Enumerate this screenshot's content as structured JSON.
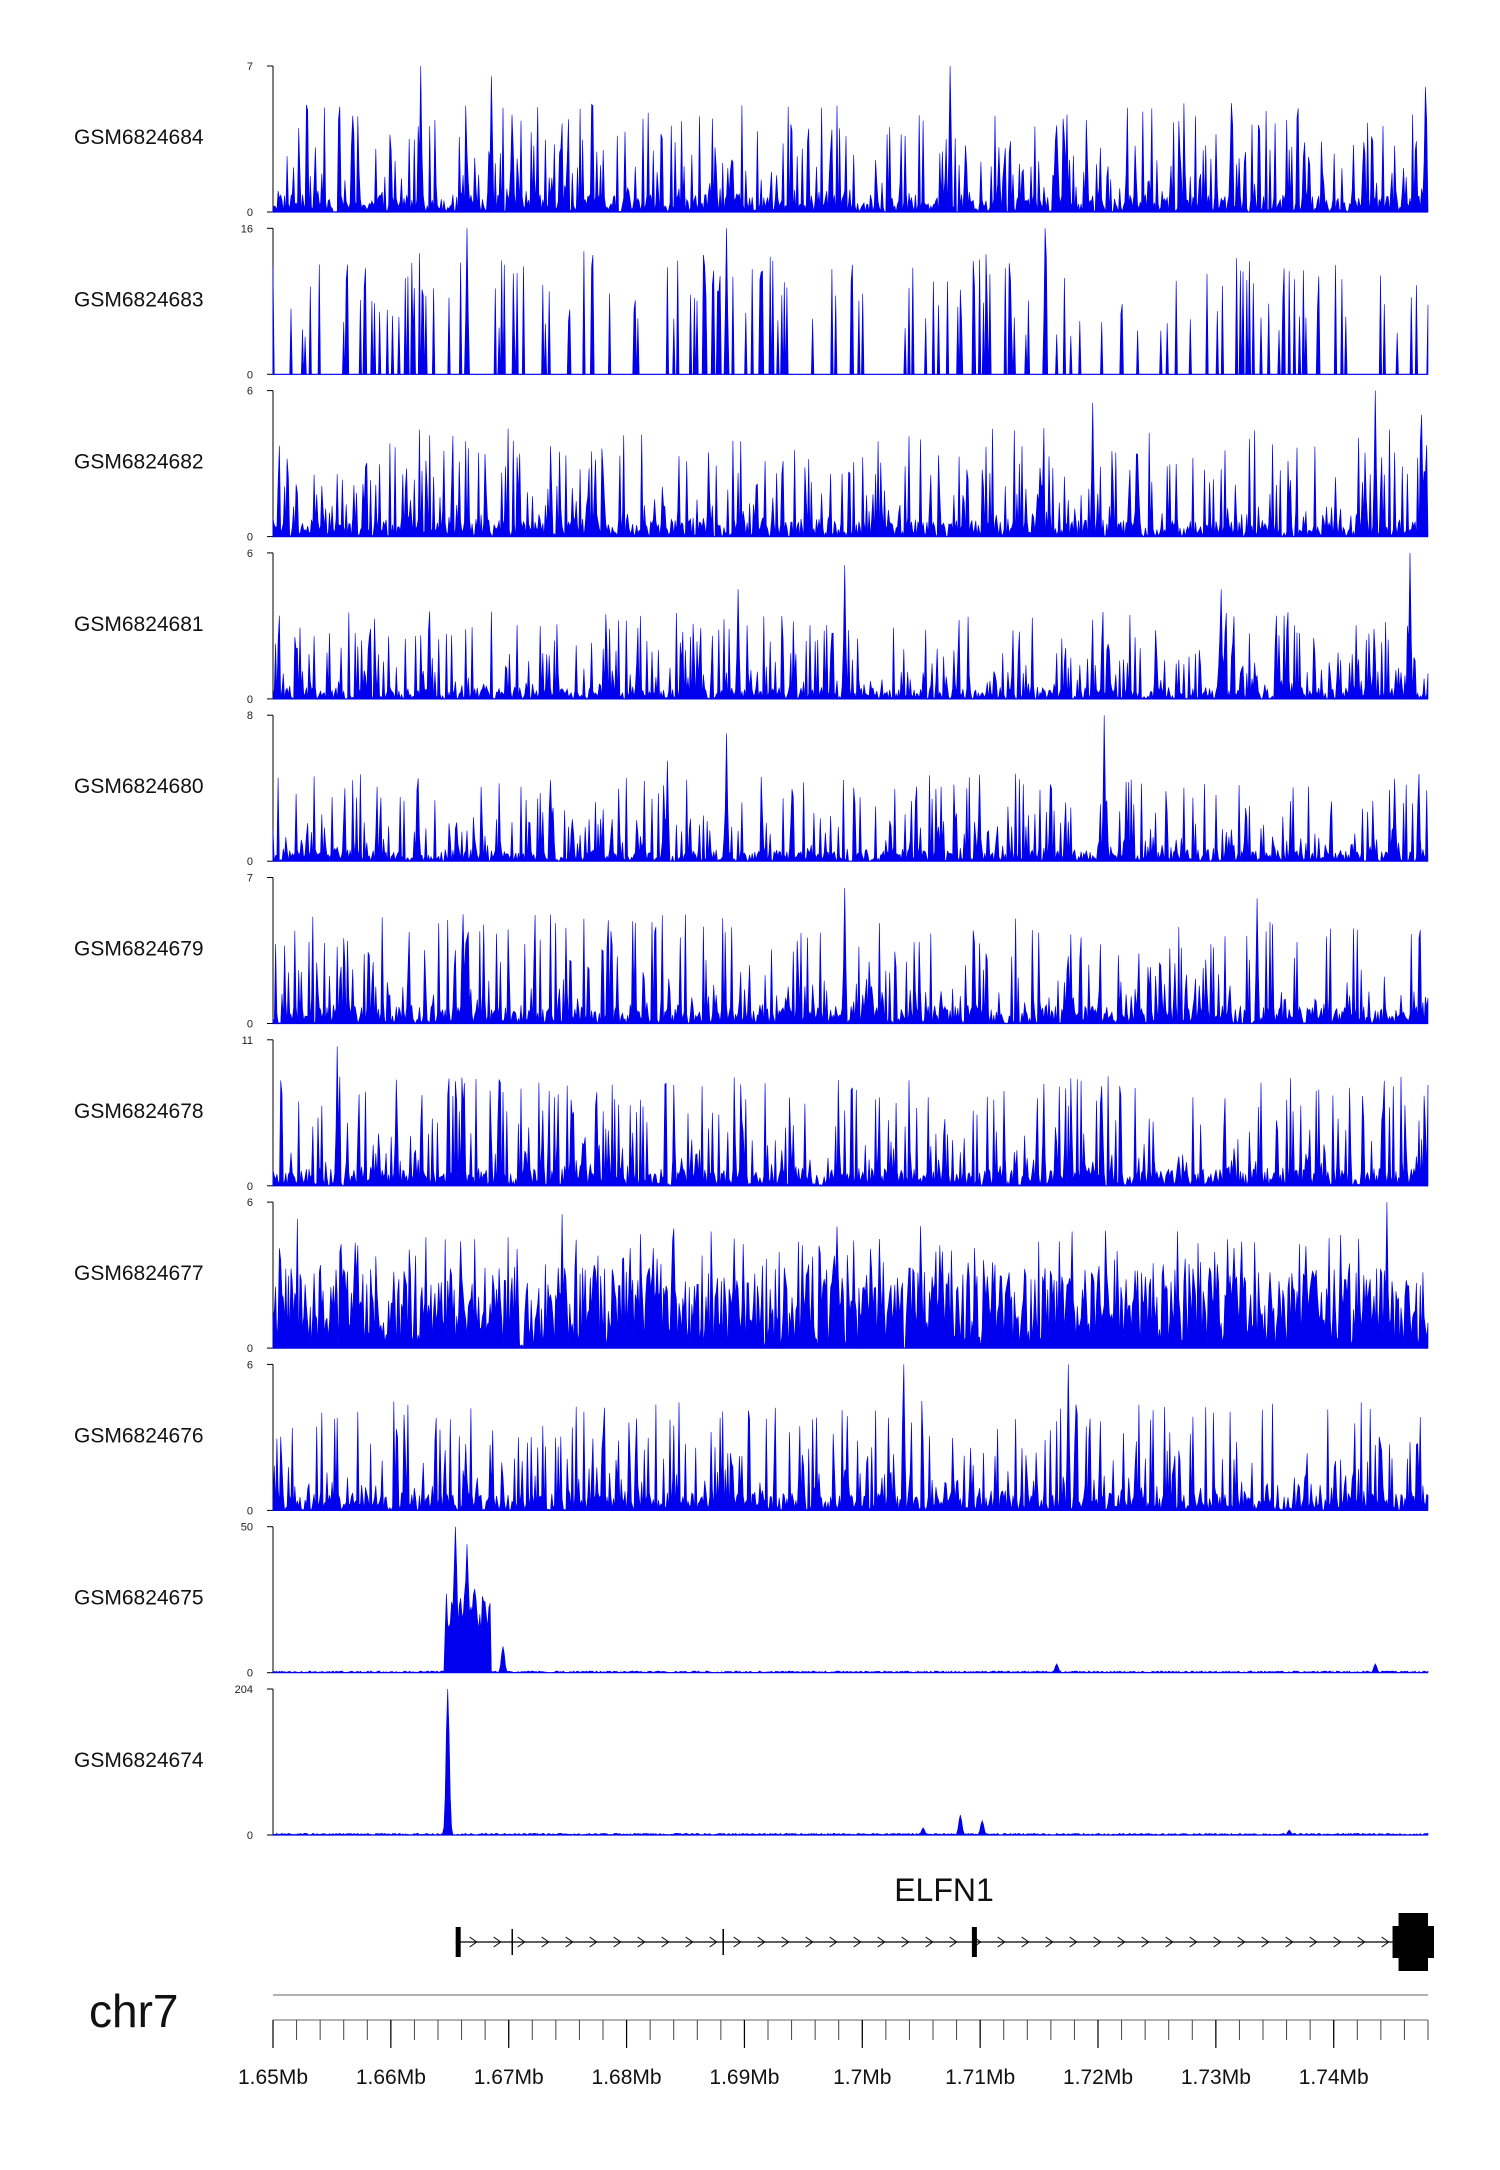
{
  "chart_data": {
    "type": "area",
    "chromosome": "chr7",
    "xlim": [
      1.65,
      1.748
    ],
    "x_unit": "Mb",
    "tick_labels": [
      "1.65Mb",
      "1.66Mb",
      "1.67Mb",
      "1.68Mb",
      "1.69Mb",
      "1.7Mb",
      "1.71Mb",
      "1.72Mb",
      "1.73Mb",
      "1.74Mb"
    ],
    "tick_values": [
      1.65,
      1.66,
      1.67,
      1.68,
      1.69,
      1.7,
      1.71,
      1.72,
      1.73,
      1.74
    ],
    "color": "#0000ee",
    "tracks": [
      {
        "name": "GSM6824684",
        "ymax": 7,
        "ymin": 0,
        "pattern": "noise",
        "peaks": [
          [
            1.6625,
            7
          ],
          [
            1.6685,
            6.5
          ],
          [
            1.7075,
            7
          ],
          [
            1.7478,
            6
          ]
        ]
      },
      {
        "name": "GSM6824683",
        "ymax": 16,
        "ymin": 0,
        "pattern": "sparse",
        "peaks": [
          [
            1.6665,
            16
          ],
          [
            1.7155,
            16
          ],
          [
            1.6885,
            16
          ]
        ]
      },
      {
        "name": "GSM6824682",
        "ymax": 6,
        "ymin": 0,
        "pattern": "noise",
        "peaks": [
          [
            1.7195,
            5.5
          ],
          [
            1.7435,
            6
          ],
          [
            1.7475,
            5
          ]
        ]
      },
      {
        "name": "GSM6824681",
        "ymax": 6,
        "ymin": 0,
        "pattern": "lownoise",
        "peaks": [
          [
            1.6895,
            4.5
          ],
          [
            1.6985,
            5.5
          ],
          [
            1.7305,
            4.5
          ],
          [
            1.7465,
            6
          ]
        ]
      },
      {
        "name": "GSM6824680",
        "ymax": 8,
        "ymin": 0,
        "pattern": "lownoise",
        "peaks": [
          [
            1.6885,
            7
          ],
          [
            1.7205,
            8
          ],
          [
            1.6835,
            5.5
          ]
        ]
      },
      {
        "name": "GSM6824679",
        "ymax": 7,
        "ymin": 0,
        "pattern": "noise",
        "peaks": [
          [
            1.6985,
            6.5
          ],
          [
            1.7335,
            6
          ]
        ]
      },
      {
        "name": "GSM6824678",
        "ymax": 11,
        "ymin": 0,
        "pattern": "noise",
        "peaks": [
          [
            1.6555,
            10.5
          ],
          [
            1.6605,
            8
          ]
        ]
      },
      {
        "name": "GSM6824677",
        "ymax": 6,
        "ymin": 0,
        "pattern": "dense",
        "peaks": [
          [
            1.6745,
            5.5
          ],
          [
            1.7445,
            6
          ]
        ]
      },
      {
        "name": "GSM6824676",
        "ymax": 6,
        "ymin": 0,
        "pattern": "noise",
        "peaks": [
          [
            1.7035,
            6
          ],
          [
            1.7175,
            6
          ]
        ]
      },
      {
        "name": "GSM6824675",
        "ymax": 50,
        "ymin": 0,
        "pattern": "flat",
        "peaks": [
          [
            1.6655,
            50
          ],
          [
            1.6665,
            44
          ],
          [
            1.6675,
            20
          ],
          [
            1.6695,
            9
          ],
          [
            1.7165,
            3
          ],
          [
            1.7435,
            3
          ]
        ]
      },
      {
        "name": "GSM6824674",
        "ymax": 204,
        "ymin": 0,
        "pattern": "flat",
        "peaks": [
          [
            1.6648,
            204
          ],
          [
            1.7083,
            28
          ],
          [
            1.7052,
            10
          ],
          [
            1.7102,
            20
          ],
          [
            1.7362,
            7
          ]
        ]
      }
    ],
    "gene": {
      "name": "ELFN1",
      "strand": "+",
      "start": 1.6655,
      "end": 1.748,
      "exons": [
        [
          1.6655,
          1.6658
        ],
        [
          1.7093,
          1.7096
        ],
        [
          1.7455,
          1.748
        ]
      ],
      "introns_marks": [
        1.6703,
        1.6882
      ]
    }
  }
}
